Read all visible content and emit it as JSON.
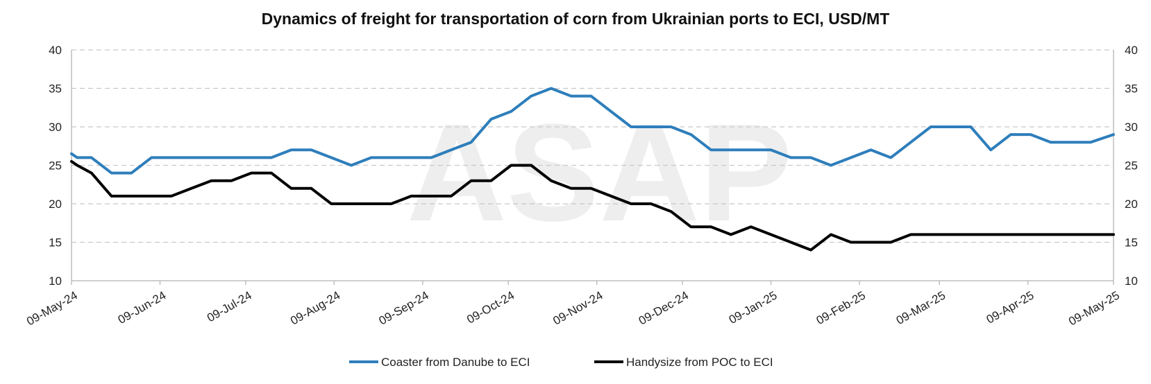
{
  "chart_data": {
    "type": "line",
    "title": "Dynamics of freight for transportation of corn from Ukrainian ports to ECI, USD/MT",
    "xlabel": "",
    "ylabel": "",
    "ylim": [
      10,
      40
    ],
    "yticks": [
      10,
      15,
      20,
      25,
      30,
      35,
      40
    ],
    "secondary_yticks": [
      10,
      15,
      20,
      25,
      30,
      35,
      40
    ],
    "x_tick_labels": [
      "09-May-24",
      "09-Jun-24",
      "09-Jul-24",
      "09-Aug-24",
      "09-Sep-24",
      "09-Oct-24",
      "09-Nov-24",
      "09-Dec-24",
      "09-Jan-25",
      "09-Feb-25",
      "09-Mar-25",
      "09-Apr-25",
      "09-May-25"
    ],
    "x_range": [
      "2024-05-09",
      "2025-05-09"
    ],
    "grid": true,
    "legend": "bottom",
    "watermark": "ASAP",
    "series": [
      {
        "name": "Coaster from Danube to ECI",
        "color": "#2e7ebb",
        "points": [
          [
            "2024-05-09",
            26.5
          ],
          [
            "2024-05-11",
            26
          ],
          [
            "2024-05-16",
            26
          ],
          [
            "2024-05-23",
            24
          ],
          [
            "2024-05-30",
            24
          ],
          [
            "2024-06-06",
            26
          ],
          [
            "2024-06-13",
            26
          ],
          [
            "2024-06-20",
            26
          ],
          [
            "2024-06-27",
            26
          ],
          [
            "2024-07-04",
            26
          ],
          [
            "2024-07-11",
            26
          ],
          [
            "2024-07-18",
            26
          ],
          [
            "2024-07-25",
            27
          ],
          [
            "2024-08-01",
            27
          ],
          [
            "2024-08-08",
            26
          ],
          [
            "2024-08-15",
            25
          ],
          [
            "2024-08-22",
            26
          ],
          [
            "2024-08-29",
            26
          ],
          [
            "2024-09-05",
            26
          ],
          [
            "2024-09-12",
            26
          ],
          [
            "2024-09-19",
            27
          ],
          [
            "2024-09-26",
            28
          ],
          [
            "2024-10-03",
            31
          ],
          [
            "2024-10-10",
            32
          ],
          [
            "2024-10-17",
            34
          ],
          [
            "2024-10-24",
            35
          ],
          [
            "2024-10-31",
            34
          ],
          [
            "2024-11-07",
            34
          ],
          [
            "2024-11-14",
            32
          ],
          [
            "2024-11-21",
            30
          ],
          [
            "2024-11-28",
            30
          ],
          [
            "2024-12-05",
            30
          ],
          [
            "2024-12-12",
            29
          ],
          [
            "2024-12-19",
            27
          ],
          [
            "2024-12-26",
            27
          ],
          [
            "2025-01-02",
            27
          ],
          [
            "2025-01-09",
            27
          ],
          [
            "2025-01-16",
            26
          ],
          [
            "2025-01-23",
            26
          ],
          [
            "2025-01-30",
            25
          ],
          [
            "2025-02-06",
            26
          ],
          [
            "2025-02-13",
            27
          ],
          [
            "2025-02-20",
            26
          ],
          [
            "2025-02-27",
            28
          ],
          [
            "2025-03-06",
            30
          ],
          [
            "2025-03-13",
            30
          ],
          [
            "2025-03-20",
            30
          ],
          [
            "2025-03-27",
            27
          ],
          [
            "2025-04-03",
            29
          ],
          [
            "2025-04-10",
            29
          ],
          [
            "2025-04-17",
            28
          ],
          [
            "2025-04-24",
            28
          ],
          [
            "2025-05-01",
            28
          ],
          [
            "2025-05-09",
            29
          ]
        ]
      },
      {
        "name": "Handysize from POC to ECI",
        "color": "#000000",
        "points": [
          [
            "2024-05-09",
            25.5
          ],
          [
            "2024-05-11",
            25
          ],
          [
            "2024-05-16",
            24
          ],
          [
            "2024-05-23",
            21
          ],
          [
            "2024-05-30",
            21
          ],
          [
            "2024-06-06",
            21
          ],
          [
            "2024-06-13",
            21
          ],
          [
            "2024-06-20",
            22
          ],
          [
            "2024-06-27",
            23
          ],
          [
            "2024-07-04",
            23
          ],
          [
            "2024-07-11",
            24
          ],
          [
            "2024-07-18",
            24
          ],
          [
            "2024-07-25",
            22
          ],
          [
            "2024-08-01",
            22
          ],
          [
            "2024-08-08",
            20
          ],
          [
            "2024-08-15",
            20
          ],
          [
            "2024-08-22",
            20
          ],
          [
            "2024-08-29",
            20
          ],
          [
            "2024-09-05",
            21
          ],
          [
            "2024-09-12",
            21
          ],
          [
            "2024-09-19",
            21
          ],
          [
            "2024-09-26",
            23
          ],
          [
            "2024-10-03",
            23
          ],
          [
            "2024-10-10",
            25
          ],
          [
            "2024-10-17",
            25
          ],
          [
            "2024-10-24",
            23
          ],
          [
            "2024-10-31",
            22
          ],
          [
            "2024-11-07",
            22
          ],
          [
            "2024-11-14",
            21
          ],
          [
            "2024-11-21",
            20
          ],
          [
            "2024-11-28",
            20
          ],
          [
            "2024-12-05",
            19
          ],
          [
            "2024-12-12",
            17
          ],
          [
            "2024-12-19",
            17
          ],
          [
            "2024-12-26",
            16
          ],
          [
            "2025-01-02",
            17
          ],
          [
            "2025-01-09",
            16
          ],
          [
            "2025-01-16",
            15
          ],
          [
            "2025-01-23",
            14
          ],
          [
            "2025-01-30",
            16
          ],
          [
            "2025-02-06",
            15
          ],
          [
            "2025-02-13",
            15
          ],
          [
            "2025-02-20",
            15
          ],
          [
            "2025-02-27",
            16
          ],
          [
            "2025-03-06",
            16
          ],
          [
            "2025-03-13",
            16
          ],
          [
            "2025-03-20",
            16
          ],
          [
            "2025-03-27",
            16
          ],
          [
            "2025-04-03",
            16
          ],
          [
            "2025-04-10",
            16
          ],
          [
            "2025-04-17",
            16
          ],
          [
            "2025-04-24",
            16
          ],
          [
            "2025-05-01",
            16
          ],
          [
            "2025-05-09",
            16
          ]
        ]
      }
    ]
  }
}
